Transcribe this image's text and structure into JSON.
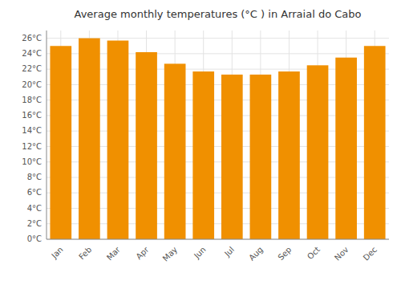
{
  "chart_data": {
    "type": "bar",
    "title": "Average monthly temperatures (°C ) in Arraial do Cabo",
    "categories": [
      "Jan",
      "Feb",
      "Mar",
      "Apr",
      "May",
      "Jun",
      "Jul",
      "Aug",
      "Sep",
      "Oct",
      "Nov",
      "Dec"
    ],
    "values": [
      25.0,
      26.0,
      25.7,
      24.2,
      22.7,
      21.7,
      21.3,
      21.3,
      21.7,
      22.5,
      23.5,
      25.0
    ],
    "color": "#F09000",
    "ylim": [
      0,
      27
    ],
    "yticks": [
      {
        "value": 0,
        "label": "0°C"
      },
      {
        "value": 2,
        "label": "2°C"
      },
      {
        "value": 4,
        "label": "4°C"
      },
      {
        "value": 6,
        "label": "6°C"
      },
      {
        "value": 8,
        "label": "8°C"
      },
      {
        "value": 10,
        "label": "10°C"
      },
      {
        "value": 12,
        "label": "12°C"
      },
      {
        "value": 14,
        "label": "14°C"
      },
      {
        "value": 16,
        "label": "16°C"
      },
      {
        "value": 18,
        "label": "18°C"
      },
      {
        "value": 20,
        "label": "20°C"
      },
      {
        "value": 22,
        "label": "22°C"
      },
      {
        "value": 24,
        "label": "24°C"
      },
      {
        "value": 26,
        "label": "26°C"
      }
    ],
    "grid": true
  }
}
